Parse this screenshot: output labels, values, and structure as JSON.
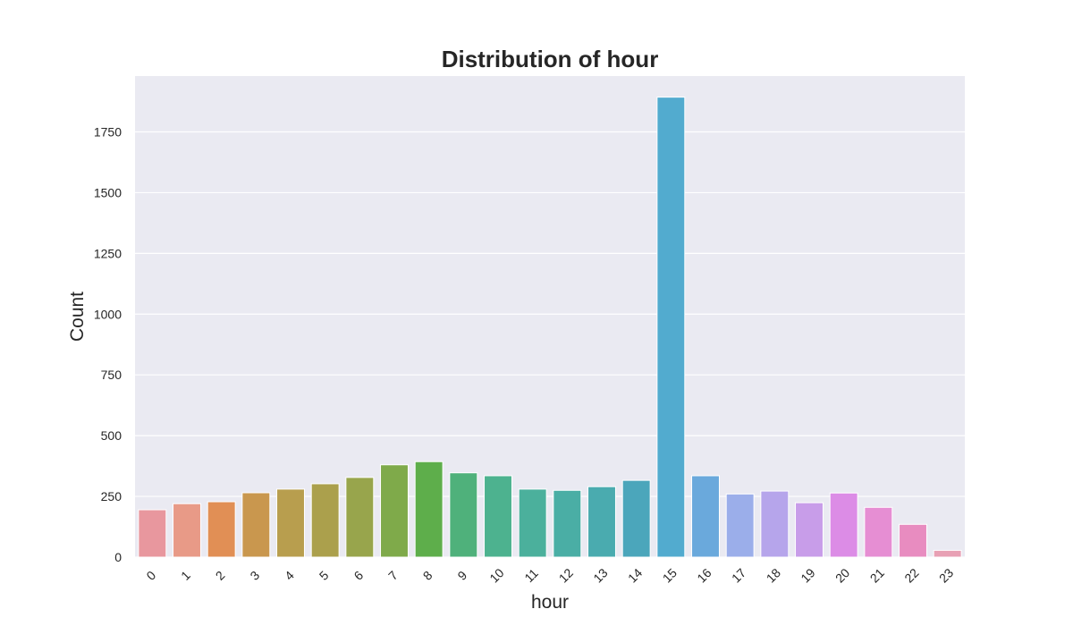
{
  "chart_data": {
    "type": "bar",
    "title": "Distribution of hour",
    "xlabel": "hour",
    "ylabel": "Count",
    "categories": [
      "0",
      "1",
      "2",
      "3",
      "4",
      "5",
      "6",
      "7",
      "8",
      "9",
      "10",
      "11",
      "12",
      "13",
      "14",
      "15",
      "16",
      "17",
      "18",
      "19",
      "20",
      "21",
      "22",
      "23"
    ],
    "values": [
      195,
      220,
      228,
      265,
      280,
      302,
      328,
      380,
      393,
      347,
      335,
      280,
      275,
      290,
      316,
      1893,
      335,
      260,
      272,
      224,
      264,
      205,
      135,
      28
    ],
    "colors": [
      "#e8979e",
      "#e89a87",
      "#e18f55",
      "#c9974e",
      "#b89e4e",
      "#aba04c",
      "#98a54c",
      "#7faa4a",
      "#5eae4b",
      "#4fb17b",
      "#4db28f",
      "#4bb09c",
      "#4aaea5",
      "#4aabaf",
      "#4ba6bb",
      "#52abcf",
      "#6aa9dc",
      "#9baeea",
      "#b6a5eb",
      "#c89de9",
      "#dc8ce6",
      "#e68ed3",
      "#e88cc0",
      "#e8a0b4"
    ],
    "yticks": [
      0,
      250,
      500,
      750,
      1000,
      1250,
      1500,
      1750
    ],
    "ylim": [
      0,
      1980
    ],
    "grid": true,
    "background": "#eaeaf2"
  }
}
